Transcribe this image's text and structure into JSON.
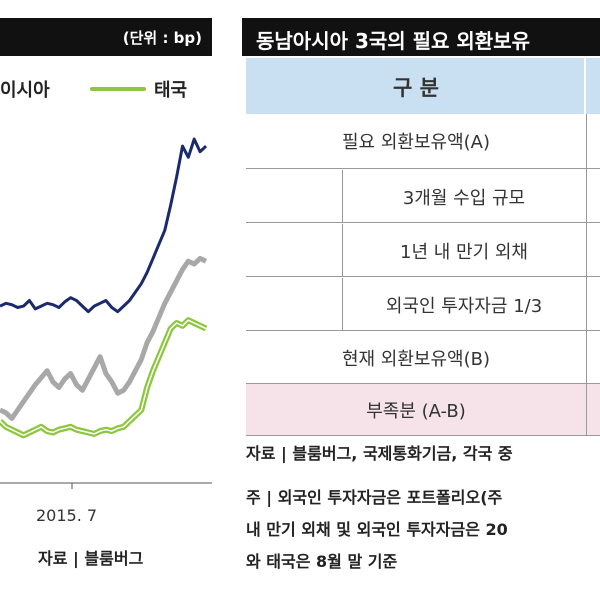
{
  "left_chart": {
    "unit": "(단위 : bp)",
    "legend": {
      "series_a_fragment": "이시아",
      "series_b": "태국"
    },
    "x_tick": "2015. 7",
    "source": "자료 | 블룸버그",
    "colors": {
      "navy": "#1a2a6c",
      "gray": "#a8a8a8",
      "green": "#8dc63f",
      "axis": "#555555"
    }
  },
  "chart_data": {
    "type": "line",
    "title": "",
    "unit": "bp",
    "xlabel": "",
    "ylabel": "",
    "x_tick_labels": [
      "2015. 7"
    ],
    "grid": false,
    "series": [
      {
        "name": "이시아",
        "color": "#1a2a6c",
        "values": [
          186,
          188,
          187,
          185,
          186,
          190,
          184,
          186,
          188,
          187,
          185,
          189,
          192,
          190,
          186,
          182,
          186,
          188,
          190,
          185,
          182,
          186,
          190,
          196,
          202,
          210,
          220,
          230,
          240,
          258,
          278,
          300,
          292,
          305,
          296,
          300
        ]
      },
      {
        "name": "",
        "color": "#a8a8a8",
        "values": [
          112,
          110,
          106,
          112,
          118,
          124,
          130,
          135,
          140,
          132,
          128,
          134,
          138,
          130,
          126,
          134,
          142,
          150,
          138,
          132,
          124,
          126,
          132,
          140,
          148,
          160,
          168,
          178,
          188,
          196,
          204,
          212,
          218,
          216,
          220,
          218
        ]
      },
      {
        "name": "태국",
        "color": "#8dc63f",
        "values": [
          104,
          100,
          98,
          96,
          94,
          96,
          98,
          100,
          97,
          96,
          98,
          99,
          100,
          98,
          97,
          96,
          95,
          97,
          98,
          97,
          99,
          100,
          104,
          108,
          112,
          128,
          140,
          150,
          160,
          170,
          174,
          172,
          176,
          174,
          172,
          170
        ]
      }
    ],
    "ylim": [
      60,
      320
    ]
  },
  "right_panel": {
    "title": "동남아시아 3국의 필요 외환보유",
    "table": {
      "header": "구 분",
      "rows": [
        {
          "label": "필요 외환보유액(A)"
        },
        {
          "label": "3개월 수입 규모"
        },
        {
          "label": "1년 내 만기 외채"
        },
        {
          "label": "외국인 투자자금 1/3"
        },
        {
          "label": "현재 외환보유액(B)"
        },
        {
          "label": "부족분 (A-B)"
        }
      ]
    },
    "source": "자료 | 블룸버그, 국제통화기금, 각국 중",
    "notes": [
      "주 | 외국인 투자자금은 포트폴리오(주",
      "내 만기 외채 및 외국인 투자자금은 20",
      "와 태국은 8월 말 기준"
    ],
    "colors": {
      "header_bg": "#111111",
      "table_head_bg": "#c9e0f2",
      "diff_row_bg": "#f6e3ea"
    }
  }
}
